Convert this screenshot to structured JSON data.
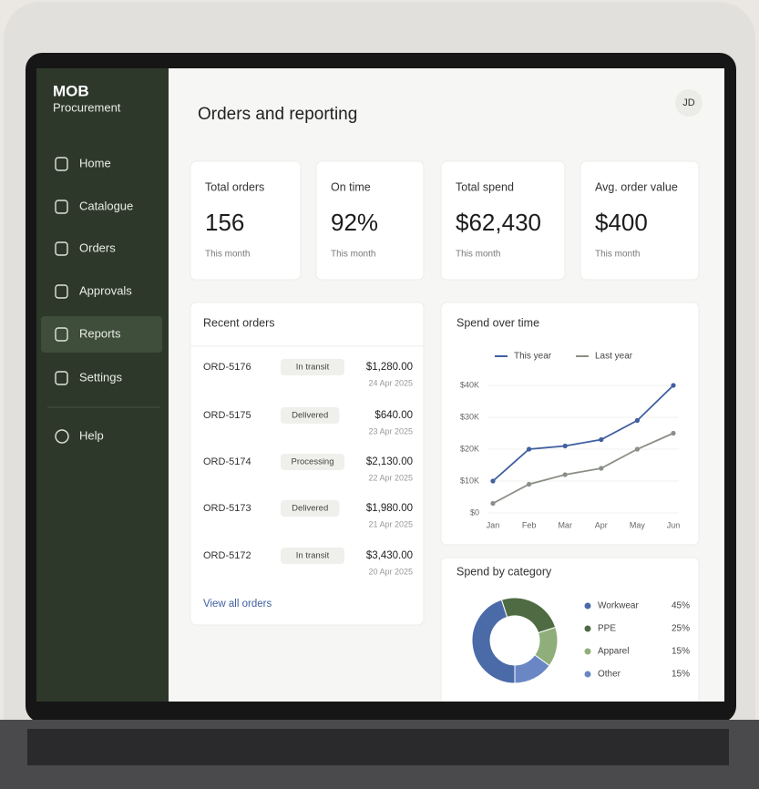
{
  "sidebar": {
    "brand": "MOB",
    "subbrand": "Procurement",
    "nav": [
      "Home",
      "Catalogue",
      "Orders",
      "Approvals",
      "Reports",
      "Settings"
    ],
    "active_index": 4,
    "help": "Help"
  },
  "header": {
    "title": "Orders and reporting",
    "avatar": "JD"
  },
  "kpis": [
    {
      "label": "Total orders",
      "value": "156",
      "note": "This month"
    },
    {
      "label": "On time",
      "value": "92%",
      "note": "This month"
    },
    {
      "label": "Total spend",
      "value": "$62,430",
      "note": "This month"
    },
    {
      "label": "Avg. order value",
      "value": "$400",
      "note": "This month"
    }
  ],
  "recent_orders": {
    "title": "Recent orders",
    "rows": [
      {
        "id": "ORD-5176",
        "status": "In transit",
        "amount": "$1,280.00",
        "date": "24 Apr 2025"
      },
      {
        "id": "ORD-5175",
        "status": "Delivered",
        "amount": "$640.00",
        "date": "23 Apr 2025"
      },
      {
        "id": "ORD-5174",
        "status": "Processing",
        "amount": "$2,130.00",
        "date": "22 Apr 2025"
      },
      {
        "id": "ORD-5173",
        "status": "Delivered",
        "amount": "$1,980.00",
        "date": "21 Apr 2025"
      },
      {
        "id": "ORD-5172",
        "status": "In transit",
        "amount": "$3,430.00",
        "date": "20 Apr 2025"
      }
    ],
    "link": "View all orders"
  },
  "chart_data": [
    {
      "type": "line",
      "title": "Spend over time",
      "categories": [
        "Jan",
        "Feb",
        "Mar",
        "Apr",
        "May",
        "Jun"
      ],
      "series": [
        {
          "name": "This year",
          "color": "#3f5fa0",
          "values": [
            10,
            20,
            21,
            23,
            29,
            40
          ]
        },
        {
          "name": "Last year",
          "color": "#8a8f86",
          "values": [
            3,
            9,
            12,
            14,
            20,
            25
          ]
        }
      ],
      "ylim": [
        0,
        40
      ],
      "yticks": [
        {
          "value": 0,
          "label": "$0"
        },
        {
          "value": 10,
          "label": "$10K"
        },
        {
          "value": 20,
          "label": "$20K"
        },
        {
          "value": 30,
          "label": "$30K"
        },
        {
          "value": 40,
          "label": "$40K"
        }
      ]
    },
    {
      "type": "pie",
      "title": "Spend by category",
      "categories": [
        "Workwear",
        "PPE",
        "Apparel",
        "Other"
      ],
      "values": [
        45,
        25,
        15,
        15
      ],
      "value_labels": [
        "45%",
        "25%",
        "15%",
        "15%"
      ],
      "colors": [
        "#4b6aa8",
        "#4f6b43",
        "#8fae7a",
        "#6a86c4"
      ]
    }
  ]
}
